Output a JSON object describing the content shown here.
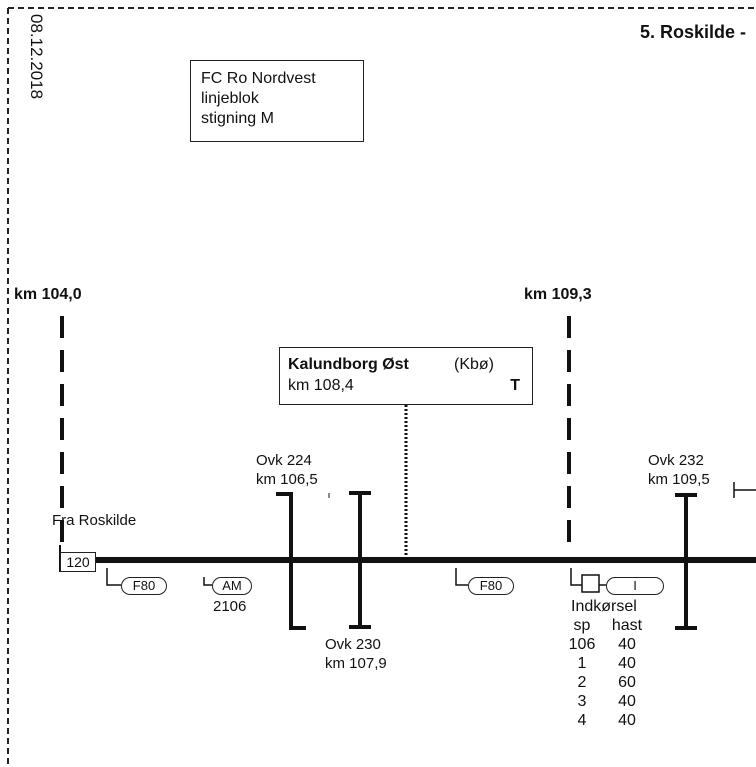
{
  "date": "08.12.2018",
  "title": "5. Roskilde -",
  "info_box": {
    "line1": "FC Ro Nordvest",
    "line2": "linjeblok",
    "line3": "stigning M"
  },
  "km_markers": {
    "left": "km 104,0",
    "right": "km 109,3"
  },
  "station": {
    "name": "Kalundborg Øst",
    "abbr": "(Kbø)",
    "km": "km 108,4",
    "code": "T"
  },
  "ovk224": {
    "name": "Ovk 224",
    "km": "km 106,5"
  },
  "ovk230": {
    "name": "Ovk 230",
    "km": "km 107,9"
  },
  "ovk232": {
    "name": "Ovk 232",
    "km": "km 109,5"
  },
  "from": "Fra Roskilde",
  "speed_start": "120",
  "signals": {
    "f80_a": "F80",
    "am": "AM",
    "am_num": "2106",
    "f80_b": "F80",
    "i": "I"
  },
  "speed_table": {
    "heading": "Indkørsel",
    "col_sp": "sp",
    "col_hast": "hast",
    "rows": [
      {
        "sp": "106",
        "hast": "40"
      },
      {
        "sp": "1",
        "hast": "40"
      },
      {
        "sp": "2",
        "hast": "60"
      },
      {
        "sp": "3",
        "hast": "40"
      },
      {
        "sp": "4",
        "hast": "40"
      }
    ]
  }
}
